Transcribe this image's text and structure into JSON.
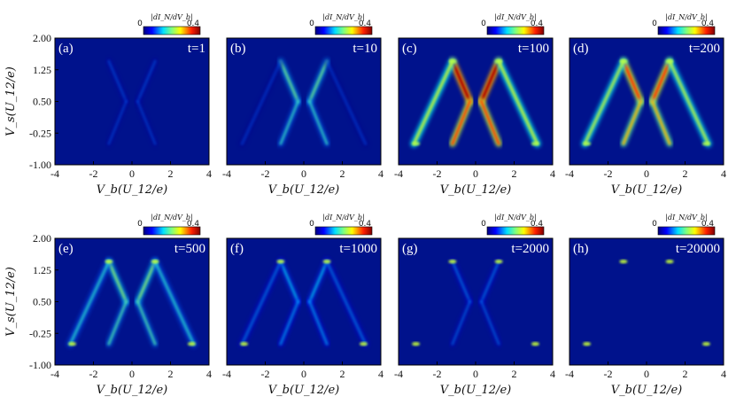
{
  "chart_data": {
    "type": "heatmap",
    "layout": "2x4 grid of panels",
    "xlabel": "V_b(U_12/e)",
    "ylabel": "V_s(U_12/e)",
    "xlim": [
      -4,
      4
    ],
    "ylim": [
      -1.0,
      2.0
    ],
    "xticks": [
      "-4",
      "-2",
      "0",
      "2",
      "4"
    ],
    "yticks": [
      "2.00",
      "1.25",
      "0.50",
      "-0.25",
      "-1.00"
    ],
    "colorbar": {
      "title": "|dI_N/dV_b|",
      "min_label": "0",
      "max_label": "0.4",
      "range": [
        0,
        0.4
      ],
      "colormap": "jet"
    },
    "background_color": "#00128c",
    "panels": [
      {
        "label": "(a)",
        "time": "t=1",
        "inner_intensity": 0.05,
        "outer_intensity": 0.0,
        "outer_spots": 0.0
      },
      {
        "label": "(b)",
        "time": "t=10",
        "inner_intensity": 0.38,
        "outer_intensity": 0.02,
        "outer_spots": 0.0
      },
      {
        "label": "(c)",
        "time": "t=100",
        "inner_intensity": 0.95,
        "outer_intensity": 0.5,
        "outer_spots": 0.2
      },
      {
        "label": "(d)",
        "time": "t=200",
        "inner_intensity": 0.78,
        "outer_intensity": 0.48,
        "outer_spots": 0.2
      },
      {
        "label": "(e)",
        "time": "t=500",
        "inner_intensity": 0.42,
        "outer_intensity": 0.28,
        "outer_spots": 0.22
      },
      {
        "label": "(f)",
        "time": "t=1000",
        "inner_intensity": 0.22,
        "outer_intensity": 0.12,
        "outer_spots": 0.22
      },
      {
        "label": "(g)",
        "time": "t=2000",
        "inner_intensity": 0.12,
        "outer_intensity": 0.0,
        "outer_spots": 0.22
      },
      {
        "label": "(h)",
        "time": "t=20000",
        "inner_intensity": 0.0,
        "outer_intensity": 0.0,
        "outer_spots": 0.22
      }
    ]
  }
}
